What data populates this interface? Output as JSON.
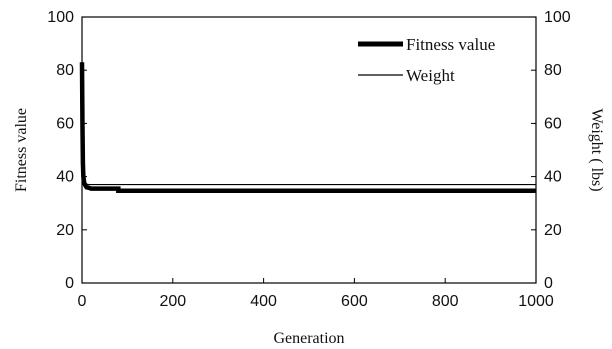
{
  "chart_data": {
    "type": "line",
    "xlabel": "Generation",
    "ylabel_left": "Fitness value",
    "ylabel_right": "Weight ( lbs)",
    "xlim": [
      0,
      1000
    ],
    "ylim_left": [
      0,
      100
    ],
    "ylim_right": [
      0,
      100
    ],
    "x_ticks": [
      0,
      200,
      400,
      600,
      800,
      1000
    ],
    "y_ticks": [
      0,
      20,
      40,
      60,
      80,
      100
    ],
    "grid": false,
    "legend_position": "top-right",
    "series": [
      {
        "name": "Fitness value",
        "axis": "left",
        "style": "thick",
        "color": "#000000",
        "x": [
          0,
          1,
          2,
          3,
          5,
          8,
          10,
          15,
          20,
          80,
          80,
          1000
        ],
        "y": [
          83,
          60,
          45,
          40,
          37.5,
          36.5,
          36,
          35.8,
          35.5,
          35.5,
          34.7,
          34.7
        ]
      },
      {
        "name": "Weight",
        "axis": "right",
        "style": "thin",
        "color": "#000000",
        "x": [
          0,
          1,
          2,
          3,
          5,
          8,
          10,
          15,
          20,
          1000
        ],
        "y": [
          83,
          60,
          45,
          40,
          38,
          37.5,
          37.2,
          37,
          37,
          37
        ]
      }
    ]
  }
}
